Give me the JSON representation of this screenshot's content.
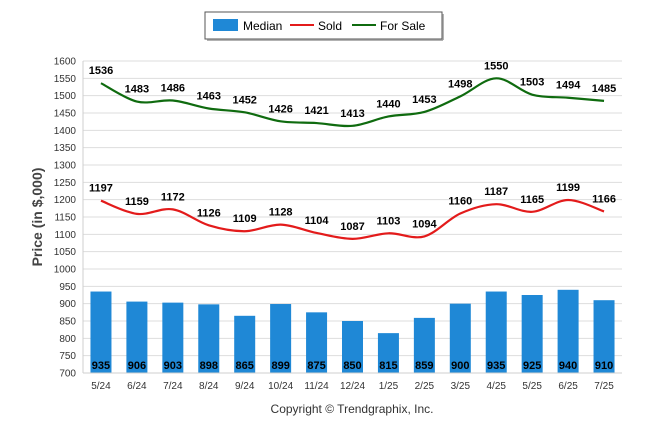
{
  "chart_data": {
    "type": "bar",
    "categories": [
      "5/24",
      "6/24",
      "7/24",
      "8/24",
      "9/24",
      "10/24",
      "11/24",
      "12/24",
      "1/25",
      "2/25",
      "3/25",
      "4/25",
      "5/25",
      "6/25",
      "7/25"
    ],
    "series": [
      {
        "name": "Median",
        "type": "bar",
        "color": "#1f88d6",
        "values": [
          935,
          906,
          903,
          898,
          865,
          899,
          875,
          850,
          815,
          859,
          900,
          935,
          925,
          940,
          910
        ]
      },
      {
        "name": "Sold",
        "type": "line",
        "color": "#e31b1b",
        "values": [
          1197,
          1159,
          1172,
          1126,
          1109,
          1128,
          1104,
          1087,
          1103,
          1094,
          1160,
          1187,
          1165,
          1199,
          1166
        ]
      },
      {
        "name": "For Sale",
        "type": "line",
        "color": "#0f6b0f",
        "values": [
          1536,
          1483,
          1486,
          1463,
          1452,
          1426,
          1421,
          1413,
          1440,
          1453,
          1498,
          1550,
          1503,
          1494,
          1485
        ]
      }
    ],
    "ylabel": "Price (in $,000)",
    "ylim": [
      700,
      1600
    ],
    "yticks": [
      700,
      750,
      800,
      850,
      900,
      950,
      1000,
      1050,
      1100,
      1150,
      1200,
      1250,
      1300,
      1350,
      1400,
      1450,
      1500,
      1550,
      1600
    ],
    "grid": true,
    "legend_position": "top-center",
    "copyright": "Copyright © Trendgraphix, Inc."
  }
}
